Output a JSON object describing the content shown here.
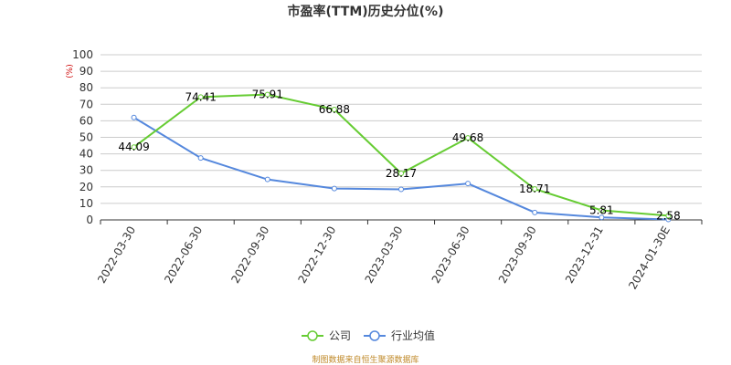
{
  "chart_data": {
    "type": "line",
    "title": "市盈率(TTM)历史分位(%)",
    "ylabel": "(%)",
    "ylim": [
      0,
      100
    ],
    "yticks": [
      0,
      10,
      20,
      30,
      40,
      50,
      60,
      70,
      80,
      90,
      100
    ],
    "grid": true,
    "categories": [
      "2022-03-30",
      "2022-06-30",
      "2022-09-30",
      "2022-12-30",
      "2023-03-30",
      "2023-06-30",
      "2023-09-30",
      "2023-12-31",
      "2024-01-30E"
    ],
    "series": [
      {
        "name": "公司",
        "color": "#66cc33",
        "values": [
          44.09,
          74.41,
          75.91,
          66.88,
          28.17,
          49.68,
          18.71,
          5.81,
          2.58
        ],
        "labels": [
          "44.09",
          "74.41",
          "75.91",
          "66.88",
          "28.17",
          "49.68",
          "18.71",
          "5.81",
          "2.58"
        ]
      },
      {
        "name": "行业均值",
        "color": "#5588dd",
        "values": [
          62,
          37.5,
          24.5,
          19,
          18.5,
          22,
          4.5,
          1.5,
          0.3
        ]
      }
    ],
    "legend_position": "bottom-center"
  },
  "footer": "制图数据来自恒生聚源数据库"
}
